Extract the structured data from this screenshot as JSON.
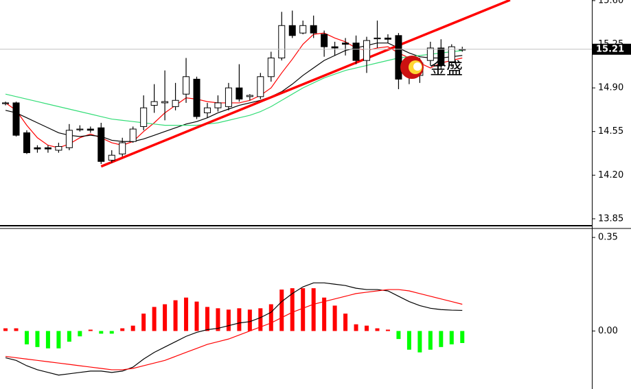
{
  "chart_data": [
    {
      "type": "candlestick",
      "x": [
        0,
        1,
        2,
        3,
        4,
        5,
        6,
        7,
        8,
        9,
        10,
        11,
        12,
        13,
        14,
        15,
        16,
        17,
        18,
        19,
        20,
        21,
        22,
        23,
        24,
        25,
        26,
        27,
        28,
        29,
        30,
        31,
        32,
        33,
        34,
        35,
        36,
        37,
        38,
        39,
        40,
        41,
        42,
        43
      ],
      "open": [
        14.78,
        14.78,
        14.54,
        14.42,
        14.42,
        14.4,
        14.42,
        14.57,
        14.57,
        14.58,
        14.32,
        14.37,
        14.47,
        14.59,
        14.76,
        14.78,
        14.75,
        14.85,
        14.97,
        14.7,
        14.74,
        14.75,
        14.9,
        14.83,
        14.83,
        14.99,
        15.14,
        15.4,
        15.34,
        15.4,
        15.33,
        15.23,
        15.26,
        15.26,
        15.12,
        15.3,
        15.3,
        15.32,
        14.99,
        15.0,
        15.12,
        15.22,
        15.11,
        15.21
      ],
      "high": [
        14.79,
        14.79,
        14.56,
        14.44,
        14.44,
        14.46,
        14.61,
        14.6,
        14.59,
        14.62,
        14.4,
        14.5,
        14.59,
        14.84,
        14.93,
        15.04,
        14.94,
        15.14,
        14.99,
        14.78,
        14.84,
        14.94,
        15.09,
        14.85,
        15.02,
        15.19,
        15.51,
        15.52,
        15.44,
        15.48,
        15.36,
        15.27,
        15.3,
        15.32,
        15.31,
        15.44,
        15.33,
        15.34,
        15.13,
        15.14,
        15.27,
        15.29,
        15.25,
        15.23
      ],
      "low": [
        14.76,
        14.51,
        14.37,
        14.38,
        14.38,
        14.38,
        14.4,
        14.55,
        14.54,
        14.29,
        14.3,
        14.35,
        14.46,
        14.56,
        14.7,
        14.64,
        14.72,
        14.78,
        14.65,
        14.66,
        14.71,
        14.72,
        14.79,
        14.8,
        14.81,
        14.95,
        15.12,
        15.3,
        15.33,
        15.3,
        15.15,
        15.16,
        15.16,
        15.09,
        15.02,
        15.22,
        15.26,
        14.89,
        14.93,
        14.94,
        15.08,
        15.05,
        15.07,
        15.19
      ],
      "close": [
        14.78,
        14.52,
        14.38,
        14.41,
        14.41,
        14.43,
        14.56,
        14.57,
        14.56,
        14.31,
        14.36,
        14.46,
        14.57,
        14.74,
        14.79,
        14.79,
        14.8,
        14.99,
        14.67,
        14.74,
        14.78,
        14.9,
        14.81,
        14.84,
        14.99,
        15.14,
        15.4,
        15.32,
        15.4,
        15.34,
        15.23,
        15.22,
        15.25,
        15.12,
        15.28,
        15.3,
        15.29,
        14.97,
        15.11,
        15.1,
        15.22,
        15.08,
        15.23,
        15.21
      ],
      "series": [
        {
          "color": "#ff0000",
          "values": [
            14.78,
            14.72,
            14.6,
            14.5,
            14.44,
            14.42,
            14.45,
            14.5,
            14.53,
            14.5,
            14.46,
            14.44,
            14.47,
            14.55,
            14.62,
            14.7,
            14.76,
            14.82,
            14.81,
            14.79,
            14.78,
            14.78,
            14.78,
            14.8,
            14.84,
            14.9,
            15.02,
            15.13,
            15.25,
            15.33,
            15.34,
            15.3,
            15.27,
            15.22,
            15.2,
            15.22,
            15.23,
            15.18,
            15.14,
            15.1,
            15.06,
            15.1,
            15.12,
            15.14
          ]
        },
        {
          "color": "#000000",
          "values": [
            14.72,
            14.7,
            14.66,
            14.62,
            14.58,
            14.54,
            14.52,
            14.51,
            14.52,
            14.51,
            14.48,
            14.47,
            14.47,
            14.49,
            14.52,
            14.55,
            14.58,
            14.61,
            14.63,
            14.66,
            14.7,
            14.73,
            14.76,
            14.78,
            14.8,
            14.83,
            14.87,
            14.93,
            15.0,
            15.06,
            15.12,
            15.16,
            15.2,
            15.22,
            15.24,
            15.26,
            15.26,
            15.22,
            15.18,
            15.15,
            15.14,
            15.14,
            15.15,
            15.16
          ]
        },
        {
          "color": "#33dd77",
          "values": [
            14.85,
            14.83,
            14.81,
            14.79,
            14.77,
            14.75,
            14.73,
            14.71,
            14.69,
            14.67,
            14.65,
            14.64,
            14.63,
            14.62,
            14.61,
            14.6,
            14.6,
            14.6,
            14.6,
            14.61,
            14.62,
            14.64,
            14.66,
            14.68,
            14.71,
            14.75,
            14.8,
            14.85,
            14.9,
            14.94,
            14.98,
            15.01,
            15.04,
            15.06,
            15.08,
            15.1,
            15.12,
            15.14,
            15.15,
            15.16,
            15.17,
            15.18,
            15.19,
            15.2
          ]
        }
      ],
      "trendline": {
        "color": "#ff0000",
        "x": [
          9,
          47.5
        ],
        "values": [
          14.27,
          15.605
        ]
      },
      "last_price": 15.21,
      "watermark": "金盛",
      "xlim": [
        -0.52,
        55.2
      ],
      "ylim": [
        13.8,
        15.605
      ],
      "yticks": [
        {
          "value": 15.6,
          "label": "15.60"
        },
        15.25,
        {
          "value": 14.9,
          "label": "14.90"
        },
        14.55,
        {
          "value": 14.2,
          "label": "14.20"
        },
        13.85
      ]
    },
    {
      "type": "macd",
      "x": [
        0,
        1,
        2,
        3,
        4,
        5,
        6,
        7,
        8,
        9,
        10,
        11,
        12,
        13,
        14,
        15,
        16,
        17,
        18,
        19,
        20,
        21,
        22,
        23,
        24,
        25,
        26,
        27,
        28,
        29,
        30,
        31,
        32,
        33,
        34,
        35,
        36,
        37,
        38,
        39,
        40,
        41,
        42,
        43
      ],
      "histogram": [
        0.01,
        0.01,
        -0.05,
        -0.06,
        -0.065,
        -0.065,
        -0.04,
        -0.02,
        0.005,
        -0.01,
        -0.01,
        0.01,
        0.02,
        0.065,
        0.09,
        0.1,
        0.115,
        0.125,
        0.11,
        0.09,
        0.085,
        0.08,
        0.085,
        0.08,
        0.085,
        0.1,
        0.155,
        0.16,
        0.16,
        0.16,
        0.125,
        0.095,
        0.065,
        0.025,
        0.02,
        0.01,
        0.005,
        -0.03,
        -0.07,
        -0.08,
        -0.07,
        -0.06,
        -0.05,
        -0.045
      ],
      "positive_color": "#ff0000",
      "negative_color": "#00ff00",
      "series": [
        {
          "color": "#000000",
          "values": [
            -0.1,
            -0.11,
            -0.13,
            -0.145,
            -0.155,
            -0.165,
            -0.16,
            -0.155,
            -0.15,
            -0.15,
            -0.155,
            -0.15,
            -0.135,
            -0.105,
            -0.08,
            -0.06,
            -0.04,
            -0.02,
            -0.005,
            0.005,
            0.01,
            0.02,
            0.03,
            0.035,
            0.05,
            0.07,
            0.11,
            0.14,
            0.165,
            0.18,
            0.18,
            0.175,
            0.17,
            0.16,
            0.155,
            0.155,
            0.15,
            0.13,
            0.11,
            0.095,
            0.085,
            0.08,
            0.078,
            0.077
          ]
        },
        {
          "color": "#ff0000",
          "values": [
            -0.095,
            -0.1,
            -0.105,
            -0.11,
            -0.115,
            -0.12,
            -0.125,
            -0.13,
            -0.135,
            -0.14,
            -0.145,
            -0.145,
            -0.14,
            -0.13,
            -0.12,
            -0.11,
            -0.095,
            -0.08,
            -0.065,
            -0.05,
            -0.04,
            -0.03,
            -0.015,
            0,
            0.015,
            0.03,
            0.05,
            0.07,
            0.085,
            0.1,
            0.11,
            0.12,
            0.13,
            0.14,
            0.145,
            0.15,
            0.155,
            0.155,
            0.15,
            0.14,
            0.13,
            0.12,
            0.11,
            0.1
          ]
        }
      ],
      "xlim": [
        -0.52,
        55.2
      ],
      "ylim": [
        -0.217,
        0.381
      ],
      "yticks": [
        0.35,
        {
          "value": 0,
          "label": "0.00"
        }
      ]
    }
  ]
}
